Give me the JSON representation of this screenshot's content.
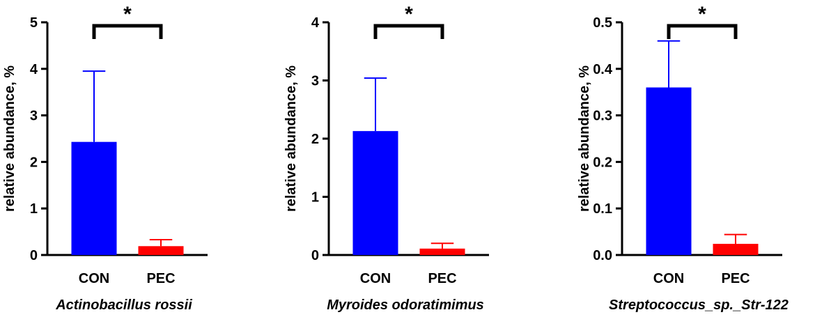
{
  "chart_data": [
    {
      "type": "bar",
      "title": "Actinobacillus rossii",
      "y_label": "relative abundance, %",
      "categories": [
        "CON",
        "PEC"
      ],
      "values": [
        2.43,
        0.19
      ],
      "errors": [
        1.52,
        0.14
      ],
      "colors": [
        "#0000ff",
        "#ff0000"
      ],
      "ylim": [
        0,
        5
      ],
      "yticks": [
        0,
        1,
        2,
        3,
        4,
        5
      ],
      "annotation": "*"
    },
    {
      "type": "bar",
      "title": "Myroides odoratimimus",
      "y_label": "relative abundance, %",
      "categories": [
        "CON",
        "PEC"
      ],
      "values": [
        2.13,
        0.11
      ],
      "errors": [
        0.91,
        0.09
      ],
      "colors": [
        "#0000ff",
        "#ff0000"
      ],
      "ylim": [
        0,
        4
      ],
      "yticks": [
        0,
        1,
        2,
        3,
        4
      ],
      "annotation": "*"
    },
    {
      "type": "bar",
      "title": "Streptococcus_sp._Str-122",
      "y_label": "relative abundance, %",
      "categories": [
        "CON",
        "PEC"
      ],
      "values": [
        0.36,
        0.024
      ],
      "errors": [
        0.1,
        0.02
      ],
      "colors": [
        "#0000ff",
        "#ff0000"
      ],
      "ylim": [
        0,
        0.5
      ],
      "yticks": [
        {
          "value": 0,
          "label": "0.0"
        },
        0.1,
        0.2,
        0.3,
        0.4,
        0.5
      ],
      "annotation": "*"
    }
  ]
}
